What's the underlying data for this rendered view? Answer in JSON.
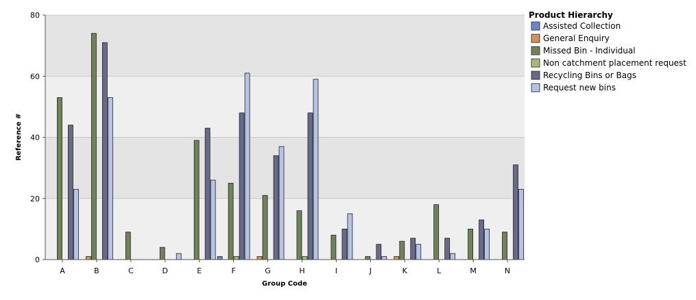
{
  "chart_data": {
    "type": "bar",
    "xlabel": "Group Code",
    "ylabel": "Reference #",
    "ylim": [
      0,
      80
    ],
    "y_ticks": [
      0,
      20,
      40,
      60,
      80
    ],
    "grid": true,
    "legend_placement": "right",
    "legend_title": "Product Hierarchy",
    "categories": [
      "A",
      "B",
      "C",
      "D",
      "E",
      "F",
      "G",
      "H",
      "I",
      "J",
      "K",
      "L",
      "M",
      "N"
    ],
    "series": [
      {
        "name": "Assisted Collection",
        "color": "#6a87c9",
        "values": [
          0,
          0,
          0,
          0,
          0,
          1,
          0,
          0,
          0,
          0,
          0,
          0,
          0,
          0
        ]
      },
      {
        "name": "General Enquiry",
        "color": "#d39258",
        "values": [
          0,
          1,
          0,
          0,
          0,
          0,
          1,
          0,
          0,
          0,
          1,
          0,
          0,
          0
        ]
      },
      {
        "name": "Missed Bin - Individual",
        "color": "#6e8358",
        "values": [
          53,
          74,
          9,
          4,
          39,
          25,
          21,
          16,
          8,
          1,
          6,
          18,
          10,
          9
        ]
      },
      {
        "name": "Non catchment placement request",
        "color": "#a9b97a",
        "values": [
          0,
          0,
          0,
          0,
          0,
          1,
          0,
          1,
          0,
          0,
          0,
          0,
          0,
          0
        ]
      },
      {
        "name": "Recycling Bins or Bags",
        "color": "#676a89",
        "values": [
          44,
          71,
          0,
          0,
          43,
          48,
          34,
          48,
          10,
          5,
          7,
          7,
          13,
          31
        ]
      },
      {
        "name": "Request new bins",
        "color": "#b5c3e6",
        "values": [
          23,
          53,
          0,
          2,
          26,
          61,
          37,
          59,
          15,
          1,
          5,
          2,
          10,
          23
        ]
      }
    ]
  }
}
